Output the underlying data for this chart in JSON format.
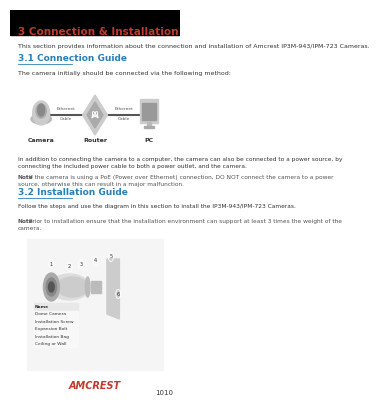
{
  "page_num": "1010",
  "bg_color": "#ffffff",
  "header_bg": "#000000",
  "title": "3 Connection & Installation",
  "title_color": "#c0392b",
  "section1_title": "3.1 Connection Guide",
  "section1_color": "#2980b9",
  "section2_title": "3.2 Installation Guide",
  "section2_color": "#2980b9",
  "intro_text": "This section provides information about the connection and installation of Amcrest IP3M-943/IPM-723 Cameras.",
  "connection_intro": "The camera initially should be connected via the following method:",
  "addition_line1": "In addition to connecting the camera to a computer, the camera can also be connected to a power source, by",
  "addition_line2": "connecting the included power cable to both a power outlet, and the camera.",
  "note1_bold": "Note",
  "note1_line1": ": If the camera is using a PoE (Power over Ethernet) connection, DO NOT connect the camera to a power",
  "note1_line2": "source, otherwise this can result in a major malfunction.",
  "install_intro": "Follow the steps and use the diagram in this section to install the IP3M-943/IPM-723 Cameras.",
  "note2_bold": "Note",
  "note2_line1": ": Prior to installation ensure that the installation environment can support at least 3 times the weight of the",
  "note2_line2": "camera.",
  "diagram_labels": [
    "Camera",
    "Router",
    "PC"
  ],
  "diagram_cable": "Ethernet\nCable",
  "text_color": "#333333",
  "note_color": "#555555",
  "font_size_title": 7.5,
  "font_size_section": 6.5,
  "font_size_body": 4.5,
  "font_size_note": 4.2,
  "font_size_page": 5,
  "logo_text": "AMCREST",
  "logo_color": "#c0392b",
  "table_rows": [
    "Name",
    "Dome Camera",
    "Installation Screw",
    "Expansion Bolt",
    "Installation Bag",
    "Ceiling or Wall"
  ]
}
